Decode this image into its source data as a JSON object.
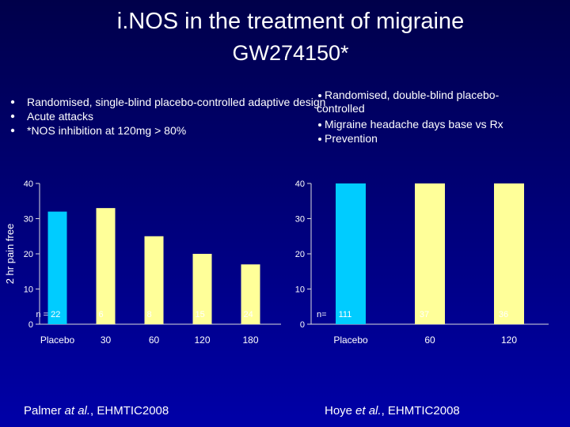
{
  "header": {
    "title": "i.NOS in the treatment of migraine",
    "subtitle": "GW274150*"
  },
  "left_bullets": [
    "Randomised, single-blind placebo-controlled adaptive design",
    "Acute attacks",
    "*NOS inhibition at 120mg > 80%"
  ],
  "right_bullets": [
    "Randomised, double-blind placebo-controlled",
    "Migraine headache days base vs Rx",
    "Prevention"
  ],
  "chart_data": [
    {
      "type": "bar",
      "ylabel": "2 hr pain free",
      "categories": [
        "Placebo",
        "30",
        "60",
        "120",
        "180"
      ],
      "values": [
        32,
        33,
        25,
        20,
        17
      ],
      "colors": [
        "#00ccff",
        "#ffff99",
        "#ffff99",
        "#ffff99",
        "#ffff99"
      ],
      "n_labels": [
        "n = 22",
        "6",
        "8",
        "15",
        "24"
      ],
      "ylim": [
        0,
        40
      ],
      "yticks": [
        0,
        10,
        20,
        30,
        40
      ],
      "source": {
        "author": "Palmer",
        "etal": "at al.",
        "ref": ", EHMTIC2008"
      }
    },
    {
      "type": "bar",
      "categories": [
        "Placebo",
        "60",
        "120"
      ],
      "values": [
        40,
        40,
        40
      ],
      "colors": [
        "#00ccff",
        "#ffff99",
        "#ffff99"
      ],
      "n_prefix": "n=",
      "n_labels": [
        "111",
        "37",
        "36"
      ],
      "ylim": [
        0,
        40
      ],
      "yticks": [
        0,
        10,
        20,
        30,
        40
      ],
      "source": {
        "author": "Hoye",
        "etal": "et al.",
        "ref": ", EHMTIC2008"
      }
    }
  ]
}
